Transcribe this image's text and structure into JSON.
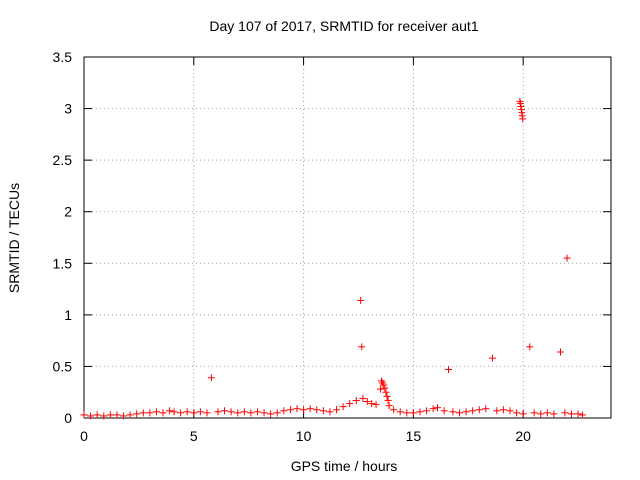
{
  "chart_data": {
    "type": "scatter",
    "title": "Day 107 of 2017, SRMTID for receiver aut1",
    "xlabel": "GPS time / hours",
    "ylabel": "SRMTID / TECUs",
    "xlim": [
      0,
      24
    ],
    "ylim": [
      0,
      3.5
    ],
    "xticks": [
      0,
      5,
      10,
      15,
      20
    ],
    "yticks": [
      0,
      0.5,
      1,
      1.5,
      2,
      2.5,
      3,
      3.5
    ],
    "xtick_labels": [
      "0",
      "5",
      "10",
      "15",
      "20"
    ],
    "ytick_labels": [
      "0",
      "0.5",
      "1",
      "1.5",
      "2",
      "2.5",
      "3",
      "3.5"
    ],
    "grid": true,
    "marker": "+",
    "series": [
      {
        "name": "aut1",
        "color": "#ff0000",
        "points": [
          [
            0.0,
            0.03
          ],
          [
            0.3,
            0.02
          ],
          [
            0.6,
            0.03
          ],
          [
            0.9,
            0.02
          ],
          [
            1.2,
            0.03
          ],
          [
            1.5,
            0.03
          ],
          [
            1.8,
            0.02
          ],
          [
            2.1,
            0.03
          ],
          [
            2.4,
            0.04
          ],
          [
            2.7,
            0.05
          ],
          [
            3.0,
            0.05
          ],
          [
            3.3,
            0.06
          ],
          [
            3.6,
            0.05
          ],
          [
            3.9,
            0.07
          ],
          [
            4.1,
            0.06
          ],
          [
            4.4,
            0.05
          ],
          [
            4.7,
            0.06
          ],
          [
            5.0,
            0.05
          ],
          [
            5.3,
            0.06
          ],
          [
            5.6,
            0.05
          ],
          [
            5.8,
            0.39
          ],
          [
            6.1,
            0.06
          ],
          [
            6.4,
            0.07
          ],
          [
            6.7,
            0.06
          ],
          [
            7.0,
            0.05
          ],
          [
            7.3,
            0.06
          ],
          [
            7.6,
            0.05
          ],
          [
            7.9,
            0.06
          ],
          [
            8.2,
            0.05
          ],
          [
            8.5,
            0.04
          ],
          [
            8.8,
            0.05
          ],
          [
            9.1,
            0.07
          ],
          [
            9.4,
            0.08
          ],
          [
            9.7,
            0.09
          ],
          [
            10.0,
            0.08
          ],
          [
            10.3,
            0.09
          ],
          [
            10.6,
            0.08
          ],
          [
            10.9,
            0.07
          ],
          [
            11.2,
            0.06
          ],
          [
            11.5,
            0.08
          ],
          [
            11.8,
            0.11
          ],
          [
            12.1,
            0.14
          ],
          [
            12.4,
            0.17
          ],
          [
            12.6,
            1.14
          ],
          [
            12.65,
            0.69
          ],
          [
            12.7,
            0.19
          ],
          [
            12.9,
            0.16
          ],
          [
            13.1,
            0.14
          ],
          [
            13.3,
            0.13
          ],
          [
            13.5,
            0.28
          ],
          [
            13.55,
            0.36
          ],
          [
            13.6,
            0.34
          ],
          [
            13.65,
            0.32
          ],
          [
            13.7,
            0.29
          ],
          [
            13.75,
            0.25
          ],
          [
            13.8,
            0.21
          ],
          [
            13.85,
            0.17
          ],
          [
            13.9,
            0.12
          ],
          [
            14.1,
            0.08
          ],
          [
            14.4,
            0.06
          ],
          [
            14.7,
            0.05
          ],
          [
            15.0,
            0.05
          ],
          [
            15.3,
            0.06
          ],
          [
            15.6,
            0.07
          ],
          [
            15.9,
            0.09
          ],
          [
            16.1,
            0.1
          ],
          [
            16.4,
            0.07
          ],
          [
            16.6,
            0.47
          ],
          [
            16.8,
            0.06
          ],
          [
            17.1,
            0.05
          ],
          [
            17.4,
            0.06
          ],
          [
            17.7,
            0.07
          ],
          [
            18.0,
            0.08
          ],
          [
            18.3,
            0.09
          ],
          [
            18.6,
            0.58
          ],
          [
            18.8,
            0.07
          ],
          [
            19.1,
            0.08
          ],
          [
            19.4,
            0.07
          ],
          [
            19.7,
            0.05
          ],
          [
            19.85,
            3.07
          ],
          [
            19.88,
            3.05
          ],
          [
            19.9,
            3.02
          ],
          [
            19.92,
            2.99
          ],
          [
            19.94,
            2.96
          ],
          [
            19.96,
            2.93
          ],
          [
            19.98,
            2.9
          ],
          [
            20.0,
            0.04
          ],
          [
            20.3,
            0.69
          ],
          [
            20.5,
            0.05
          ],
          [
            20.8,
            0.04
          ],
          [
            21.1,
            0.05
          ],
          [
            21.4,
            0.04
          ],
          [
            21.7,
            0.64
          ],
          [
            21.9,
            0.05
          ],
          [
            22.0,
            1.55
          ],
          [
            22.2,
            0.04
          ],
          [
            22.5,
            0.04
          ],
          [
            22.7,
            0.03
          ]
        ]
      }
    ]
  }
}
